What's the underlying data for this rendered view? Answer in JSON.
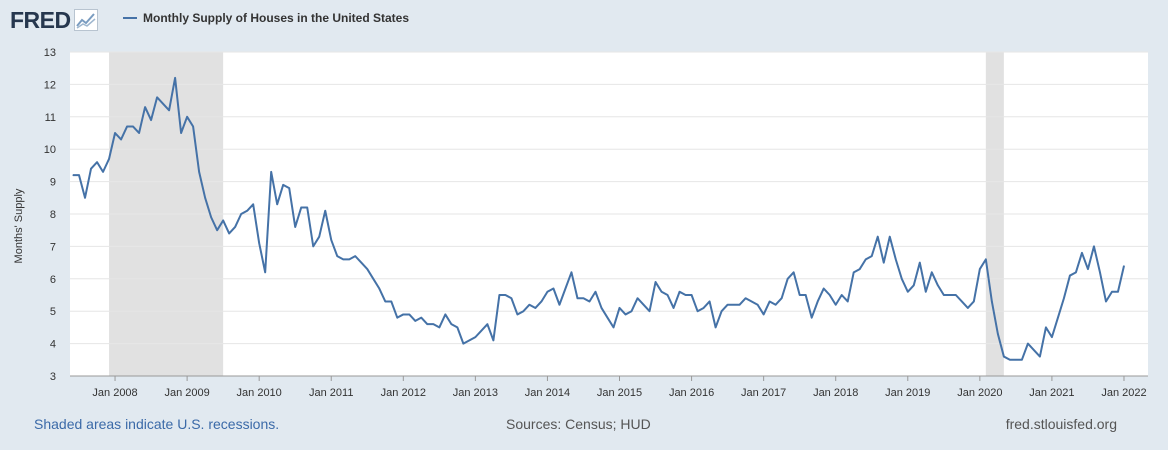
{
  "header": {
    "logo_text": "FRED",
    "legend_label": "Monthly Supply of Houses in the United States"
  },
  "footer": {
    "recession_note": "Shaded areas indicate U.S. recessions.",
    "sources": "Sources: Census; HUD",
    "site": "fred.stlouisfed.org"
  },
  "colors": {
    "line": "#4572a7",
    "recession": "#e1e1e1",
    "background": "#e1e9f0"
  },
  "chart_data": {
    "type": "line",
    "title": "",
    "xlabel": "",
    "ylabel": "Months' Supply",
    "ylim": [
      3,
      13
    ],
    "yticks": [
      3,
      4,
      5,
      6,
      7,
      8,
      9,
      10,
      11,
      12,
      13
    ],
    "xlim": [
      "2007-06",
      "2022-05"
    ],
    "xticks": [
      "Jan 2008",
      "Jan 2009",
      "Jan 2010",
      "Jan 2011",
      "Jan 2012",
      "Jan 2013",
      "Jan 2014",
      "Jan 2015",
      "Jan 2016",
      "Jan 2017",
      "Jan 2018",
      "Jan 2019",
      "Jan 2020",
      "Jan 2021",
      "Jan 2022"
    ],
    "recessions": [
      [
        "2007-12",
        "2009-06"
      ],
      [
        "2020-02",
        "2020-04"
      ]
    ],
    "grid": "horizontal",
    "series": [
      {
        "name": "Monthly Supply of Houses in the United States",
        "start": "2007-06",
        "frequency": "monthly",
        "values": [
          9.2,
          9.2,
          8.5,
          9.4,
          9.6,
          9.3,
          9.7,
          10.5,
          10.3,
          10.7,
          10.7,
          10.5,
          11.3,
          10.9,
          11.6,
          11.4,
          11.2,
          12.2,
          10.5,
          11.0,
          10.7,
          9.3,
          8.5,
          7.9,
          7.5,
          7.8,
          7.4,
          7.6,
          8.0,
          8.1,
          8.3,
          7.1,
          6.2,
          9.3,
          8.3,
          8.9,
          8.8,
          7.6,
          8.2,
          8.2,
          7.0,
          7.3,
          8.1,
          7.2,
          6.7,
          6.6,
          6.6,
          6.7,
          6.5,
          6.3,
          6.0,
          5.7,
          5.3,
          5.3,
          4.8,
          4.9,
          4.9,
          4.7,
          4.8,
          4.6,
          4.6,
          4.5,
          4.9,
          4.6,
          4.5,
          4.0,
          4.1,
          4.2,
          4.4,
          4.6,
          4.1,
          5.5,
          5.5,
          5.4,
          4.9,
          5.0,
          5.2,
          5.1,
          5.3,
          5.6,
          5.7,
          5.2,
          5.7,
          6.2,
          5.4,
          5.4,
          5.3,
          5.6,
          5.1,
          4.8,
          4.5,
          5.1,
          4.9,
          5.0,
          5.4,
          5.2,
          5.0,
          5.9,
          5.6,
          5.5,
          5.1,
          5.6,
          5.5,
          5.5,
          5.0,
          5.1,
          5.3,
          4.5,
          5.0,
          5.2,
          5.2,
          5.2,
          5.4,
          5.3,
          5.2,
          4.9,
          5.3,
          5.2,
          5.4,
          6.0,
          6.2,
          5.5,
          5.5,
          4.8,
          5.3,
          5.7,
          5.5,
          5.2,
          5.5,
          5.3,
          6.2,
          6.3,
          6.6,
          6.7,
          7.3,
          6.5,
          7.3,
          6.6,
          6.0,
          5.6,
          5.8,
          6.5,
          5.6,
          6.2,
          5.8,
          5.5,
          5.5,
          5.5,
          5.3,
          5.1,
          5.3,
          6.3,
          6.6,
          5.3,
          4.3,
          3.6,
          3.5,
          3.5,
          3.5,
          4.0,
          3.8,
          3.6,
          4.5,
          4.2,
          4.8,
          5.4,
          6.1,
          6.2,
          6.8,
          6.3,
          7.0,
          6.2,
          5.3,
          5.6,
          5.6,
          6.4
        ]
      }
    ]
  }
}
